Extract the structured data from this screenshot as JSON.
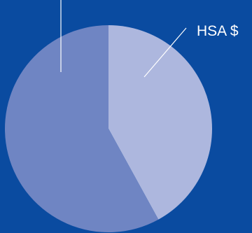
{
  "chart_data": {
    "type": "pie",
    "title": "",
    "categories": [
      "HSA $",
      ""
    ],
    "values": [
      42,
      58
    ],
    "colors": [
      "#adb7de",
      "#6f85c3"
    ],
    "legend": "none"
  },
  "colors": {
    "background": "#0a4ba0",
    "leader_line": "#ffffff",
    "label_text": "#ffffff"
  }
}
